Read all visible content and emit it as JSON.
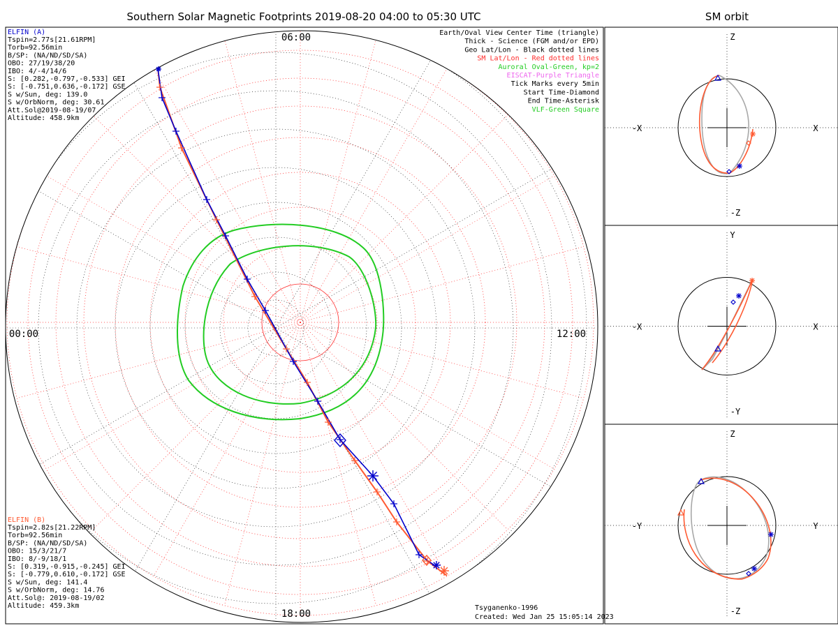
{
  "title": "Southern Solar Magnetic Footprints 2019-08-20 04:00 to 05:30 UTC",
  "orbit_title": "SM orbit",
  "colors": {
    "elfin_a": "#0000cc",
    "elfin_b": "#ff5a32",
    "oval": "#22cc22",
    "sm_grid": "#ff2a2a",
    "geo_grid": "#000000",
    "eiscat": "#ee66ee",
    "orbit_gray": "#a8a8a8"
  },
  "elfin_a": {
    "name": "ELFIN (A)",
    "lines": [
      "Tspin=2.77s[21.61RPM]",
      "Torb=92.56min",
      "B/SP: (NA/ND/SD/SA)",
      "OBO: 27/19/38/20",
      "IBO: 4/-4/14/6",
      "S: [0.282,-0.797,-0.533] GEI",
      "S: [-0.751,0.636,-0.172] GSE",
      "S w/Sun, deg: 139.0",
      "S w/OrbNorm, deg: 30.61",
      "Att.Sol@2019-08-19/07",
      "Altitude: 458.9km"
    ]
  },
  "elfin_b": {
    "name": "ELFIN (B)",
    "lines": [
      "Tspin=2.82s[21.22RPM]",
      "Torb=92.56min",
      "B/SP: (NA/ND/SD/SA)",
      "OBO: 15/3/21/7",
      "IBO: 8/-9/18/1",
      "S: [0.319,-0.915,-0.245] GEI",
      "S: [-0.779,0.610,-0.172] GSE",
      "S w/Sun, deg: 141.4",
      "S w/OrbNorm, deg: 14.76",
      "Att.Sol@: 2019-08-19/02",
      "Altitude: 459.3km"
    ]
  },
  "legend": [
    {
      "text": "Earth/Oval View Center Time (triangle)",
      "color": "#000000"
    },
    {
      "text": "Thick - Science (FGM and/or EPD)",
      "color": "#000000"
    },
    {
      "text": "Geo Lat/Lon - Black dotted lines",
      "color": "#000000"
    },
    {
      "text": "SM Lat/Lon - Red dotted lines",
      "color": "#ff2a2a"
    },
    {
      "text": "Auroral Oval-Green, kp=2",
      "color": "#22cc22"
    },
    {
      "text": "EISCAT-Purple Triangle",
      "color": "#ee66ee"
    },
    {
      "text": "Tick Marks every 5min",
      "color": "#000000"
    },
    {
      "text": "Start Time-Diamond",
      "color": "#000000"
    },
    {
      "text": "End Time-Asterisk",
      "color": "#000000"
    },
    {
      "text": "VLF-Green Square",
      "color": "#22cc22"
    }
  ],
  "mlt_labels": {
    "top": "06:00",
    "left": "00:00",
    "right": "12:00",
    "bottom": "18:00"
  },
  "footer": {
    "model": "Tsyganenko-1996",
    "created": "Created: Wed Jan 25 15:05:14 2023"
  },
  "orbit_panels": [
    {
      "h_neg": "-X",
      "h_pos": "X",
      "v_pos": "Z",
      "v_neg": "-Z"
    },
    {
      "h_neg": "-X",
      "h_pos": "X",
      "v_pos": "Y",
      "v_neg": "-Y"
    },
    {
      "h_neg": "-Y",
      "h_pos": "Y",
      "v_pos": "Z",
      "v_neg": "-Z"
    }
  ],
  "chart_data": {
    "type": "scatter",
    "description_axes": "Polar stereographic map centered on south magnetic pole; MLT around the rim",
    "series": [
      {
        "name": "ELFIN (A)"
      },
      {
        "name": "ELFIN (B)"
      }
    ]
  }
}
